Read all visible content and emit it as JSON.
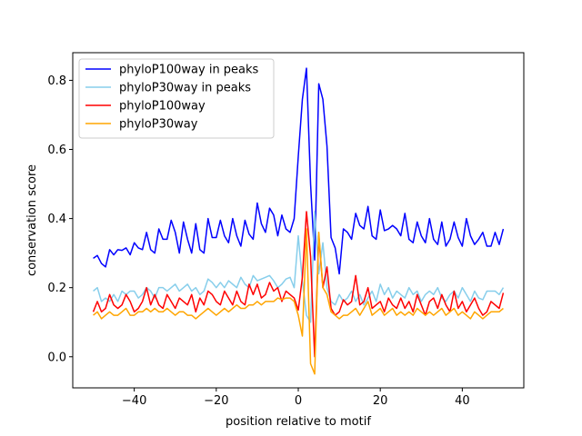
{
  "chart_data": {
    "type": "line",
    "title": "",
    "xlabel": "position relative to motif",
    "ylabel": "conservation score",
    "xlim": [
      -55,
      55
    ],
    "ylim": [
      -0.09,
      0.88
    ],
    "xticks": [
      -40,
      -20,
      0,
      20,
      40
    ],
    "yticks": [
      0.0,
      0.2,
      0.4,
      0.6,
      0.8
    ],
    "xtick_labels": [
      "−40",
      "−20",
      "0",
      "20",
      "40"
    ],
    "ytick_labels": [
      "0.0",
      "0.2",
      "0.4",
      "0.6",
      "0.8"
    ],
    "legend_position": "top-left",
    "x": [
      -50,
      -49,
      -48,
      -47,
      -46,
      -45,
      -44,
      -43,
      -42,
      -41,
      -40,
      -39,
      -38,
      -37,
      -36,
      -35,
      -34,
      -33,
      -32,
      -31,
      -30,
      -29,
      -28,
      -27,
      -26,
      -25,
      -24,
      -23,
      -22,
      -21,
      -20,
      -19,
      -18,
      -17,
      -16,
      -15,
      -14,
      -13,
      -12,
      -11,
      -10,
      -9,
      -8,
      -7,
      -6,
      -5,
      -4,
      -3,
      -2,
      -1,
      0,
      1,
      2,
      3,
      4,
      5,
      6,
      7,
      8,
      9,
      10,
      11,
      12,
      13,
      14,
      15,
      16,
      17,
      18,
      19,
      20,
      21,
      22,
      23,
      24,
      25,
      26,
      27,
      28,
      29,
      30,
      31,
      32,
      33,
      34,
      35,
      36,
      37,
      38,
      39,
      40,
      41,
      42,
      43,
      44,
      45,
      46,
      47,
      48,
      49,
      50
    ],
    "series": [
      {
        "name": "phyloP100way in peaks",
        "color": "#0000ff",
        "values": [
          0.285,
          0.293,
          0.27,
          0.26,
          0.31,
          0.295,
          0.31,
          0.308,
          0.315,
          0.295,
          0.33,
          0.315,
          0.31,
          0.36,
          0.31,
          0.3,
          0.37,
          0.34,
          0.34,
          0.395,
          0.36,
          0.3,
          0.39,
          0.34,
          0.3,
          0.385,
          0.31,
          0.3,
          0.4,
          0.345,
          0.345,
          0.395,
          0.35,
          0.33,
          0.4,
          0.35,
          0.32,
          0.395,
          0.355,
          0.34,
          0.445,
          0.385,
          0.36,
          0.43,
          0.41,
          0.35,
          0.41,
          0.37,
          0.36,
          0.4,
          0.58,
          0.745,
          0.835,
          0.5,
          0.28,
          0.79,
          0.745,
          0.61,
          0.345,
          0.315,
          0.24,
          0.37,
          0.36,
          0.34,
          0.415,
          0.38,
          0.37,
          0.435,
          0.35,
          0.34,
          0.425,
          0.365,
          0.37,
          0.38,
          0.37,
          0.35,
          0.415,
          0.34,
          0.33,
          0.39,
          0.35,
          0.33,
          0.4,
          0.34,
          0.325,
          0.39,
          0.32,
          0.34,
          0.39,
          0.345,
          0.32,
          0.4,
          0.35,
          0.325,
          0.34,
          0.36,
          0.32,
          0.32,
          0.36,
          0.325,
          0.37
        ]
      },
      {
        "name": "phyloP30way in peaks",
        "color": "#87ceeb",
        "values": [
          0.19,
          0.2,
          0.16,
          0.17,
          0.16,
          0.18,
          0.16,
          0.19,
          0.18,
          0.19,
          0.19,
          0.17,
          0.18,
          0.2,
          0.19,
          0.17,
          0.2,
          0.2,
          0.19,
          0.2,
          0.21,
          0.19,
          0.2,
          0.21,
          0.19,
          0.2,
          0.18,
          0.19,
          0.225,
          0.215,
          0.2,
          0.215,
          0.2,
          0.22,
          0.21,
          0.2,
          0.23,
          0.21,
          0.2,
          0.235,
          0.22,
          0.225,
          0.23,
          0.235,
          0.22,
          0.2,
          0.21,
          0.225,
          0.23,
          0.2,
          0.35,
          0.22,
          0.12,
          0.1,
          0.42,
          0.24,
          0.33,
          0.2,
          0.16,
          0.15,
          0.18,
          0.16,
          0.17,
          0.19,
          0.16,
          0.18,
          0.15,
          0.17,
          0.19,
          0.16,
          0.21,
          0.18,
          0.2,
          0.17,
          0.19,
          0.18,
          0.17,
          0.2,
          0.18,
          0.19,
          0.16,
          0.18,
          0.19,
          0.18,
          0.2,
          0.17,
          0.16,
          0.18,
          0.19,
          0.17,
          0.2,
          0.18,
          0.16,
          0.19,
          0.17,
          0.165,
          0.19,
          0.19,
          0.19,
          0.18,
          0.2
        ]
      },
      {
        "name": "phyloP100way",
        "color": "#ff0000",
        "values": [
          0.13,
          0.16,
          0.13,
          0.14,
          0.18,
          0.15,
          0.14,
          0.15,
          0.18,
          0.16,
          0.13,
          0.14,
          0.16,
          0.2,
          0.15,
          0.18,
          0.15,
          0.14,
          0.18,
          0.16,
          0.14,
          0.17,
          0.16,
          0.15,
          0.18,
          0.13,
          0.17,
          0.15,
          0.19,
          0.18,
          0.16,
          0.15,
          0.19,
          0.17,
          0.15,
          0.19,
          0.16,
          0.15,
          0.21,
          0.18,
          0.21,
          0.17,
          0.18,
          0.215,
          0.19,
          0.2,
          0.16,
          0.19,
          0.18,
          0.17,
          0.135,
          0.23,
          0.42,
          0.29,
          0.0,
          0.35,
          0.2,
          0.26,
          0.14,
          0.12,
          0.13,
          0.165,
          0.15,
          0.16,
          0.235,
          0.15,
          0.16,
          0.2,
          0.14,
          0.15,
          0.16,
          0.13,
          0.17,
          0.15,
          0.14,
          0.17,
          0.14,
          0.16,
          0.13,
          0.18,
          0.15,
          0.12,
          0.16,
          0.17,
          0.14,
          0.18,
          0.15,
          0.13,
          0.19,
          0.14,
          0.16,
          0.13,
          0.15,
          0.17,
          0.14,
          0.12,
          0.13,
          0.16,
          0.15,
          0.14,
          0.185
        ]
      },
      {
        "name": "phyloP30way",
        "color": "#ffa500",
        "values": [
          0.12,
          0.13,
          0.11,
          0.12,
          0.13,
          0.12,
          0.12,
          0.13,
          0.14,
          0.12,
          0.12,
          0.13,
          0.13,
          0.14,
          0.13,
          0.14,
          0.13,
          0.13,
          0.14,
          0.13,
          0.12,
          0.13,
          0.13,
          0.12,
          0.12,
          0.11,
          0.12,
          0.13,
          0.14,
          0.13,
          0.12,
          0.13,
          0.14,
          0.13,
          0.14,
          0.15,
          0.14,
          0.14,
          0.15,
          0.15,
          0.16,
          0.15,
          0.16,
          0.16,
          0.16,
          0.17,
          0.165,
          0.17,
          0.17,
          0.16,
          0.12,
          0.06,
          0.37,
          -0.02,
          -0.05,
          0.36,
          0.2,
          0.18,
          0.13,
          0.12,
          0.11,
          0.12,
          0.12,
          0.13,
          0.14,
          0.12,
          0.14,
          0.16,
          0.12,
          0.13,
          0.14,
          0.12,
          0.13,
          0.14,
          0.12,
          0.13,
          0.12,
          0.13,
          0.12,
          0.14,
          0.13,
          0.12,
          0.13,
          0.12,
          0.13,
          0.14,
          0.12,
          0.13,
          0.14,
          0.12,
          0.13,
          0.12,
          0.11,
          0.13,
          0.12,
          0.11,
          0.12,
          0.13,
          0.13,
          0.13,
          0.14
        ]
      }
    ]
  }
}
